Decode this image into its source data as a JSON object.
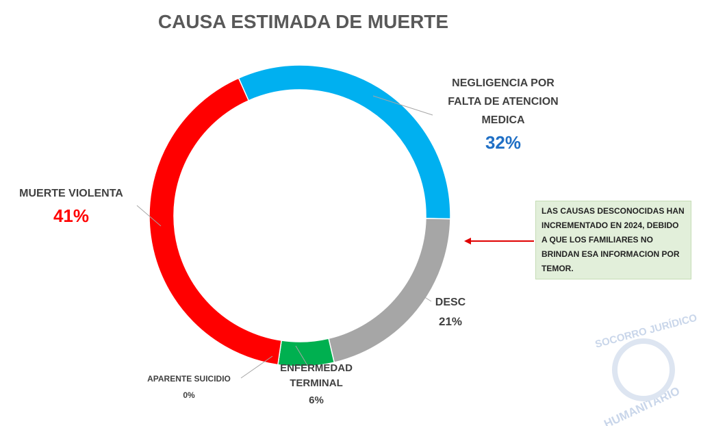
{
  "chart_data": {
    "type": "donut",
    "title": "CAUSA ESTIMADA DE MUERTE",
    "categories": [
      "NEGLIGENCIA POR FALTA DE ATENCION MEDICA",
      "DESC",
      "ENFERMEDAD TERMINAL",
      "APARENTE SUICIDIO",
      "MUERTE VIOLENTA"
    ],
    "values": [
      32,
      21,
      6,
      0,
      41
    ],
    "value_labels": [
      "32%",
      "21%",
      "6%",
      "0%",
      "41%"
    ],
    "colors": [
      "#00b0f0",
      "#a6a6a6",
      "#00b050",
      "#ffff00",
      "#ff0000"
    ],
    "annotation": "LAS CAUSAS DESCONOCIDAS HAN INCREMENTADO EN 2024, DEBIDO A QUE LOS FAMILIARES NO BRINDAN ESA INFORMACION POR TEMOR.",
    "watermark": [
      "SOCORRO JURÍDICO",
      "HUMANITARIO"
    ]
  }
}
